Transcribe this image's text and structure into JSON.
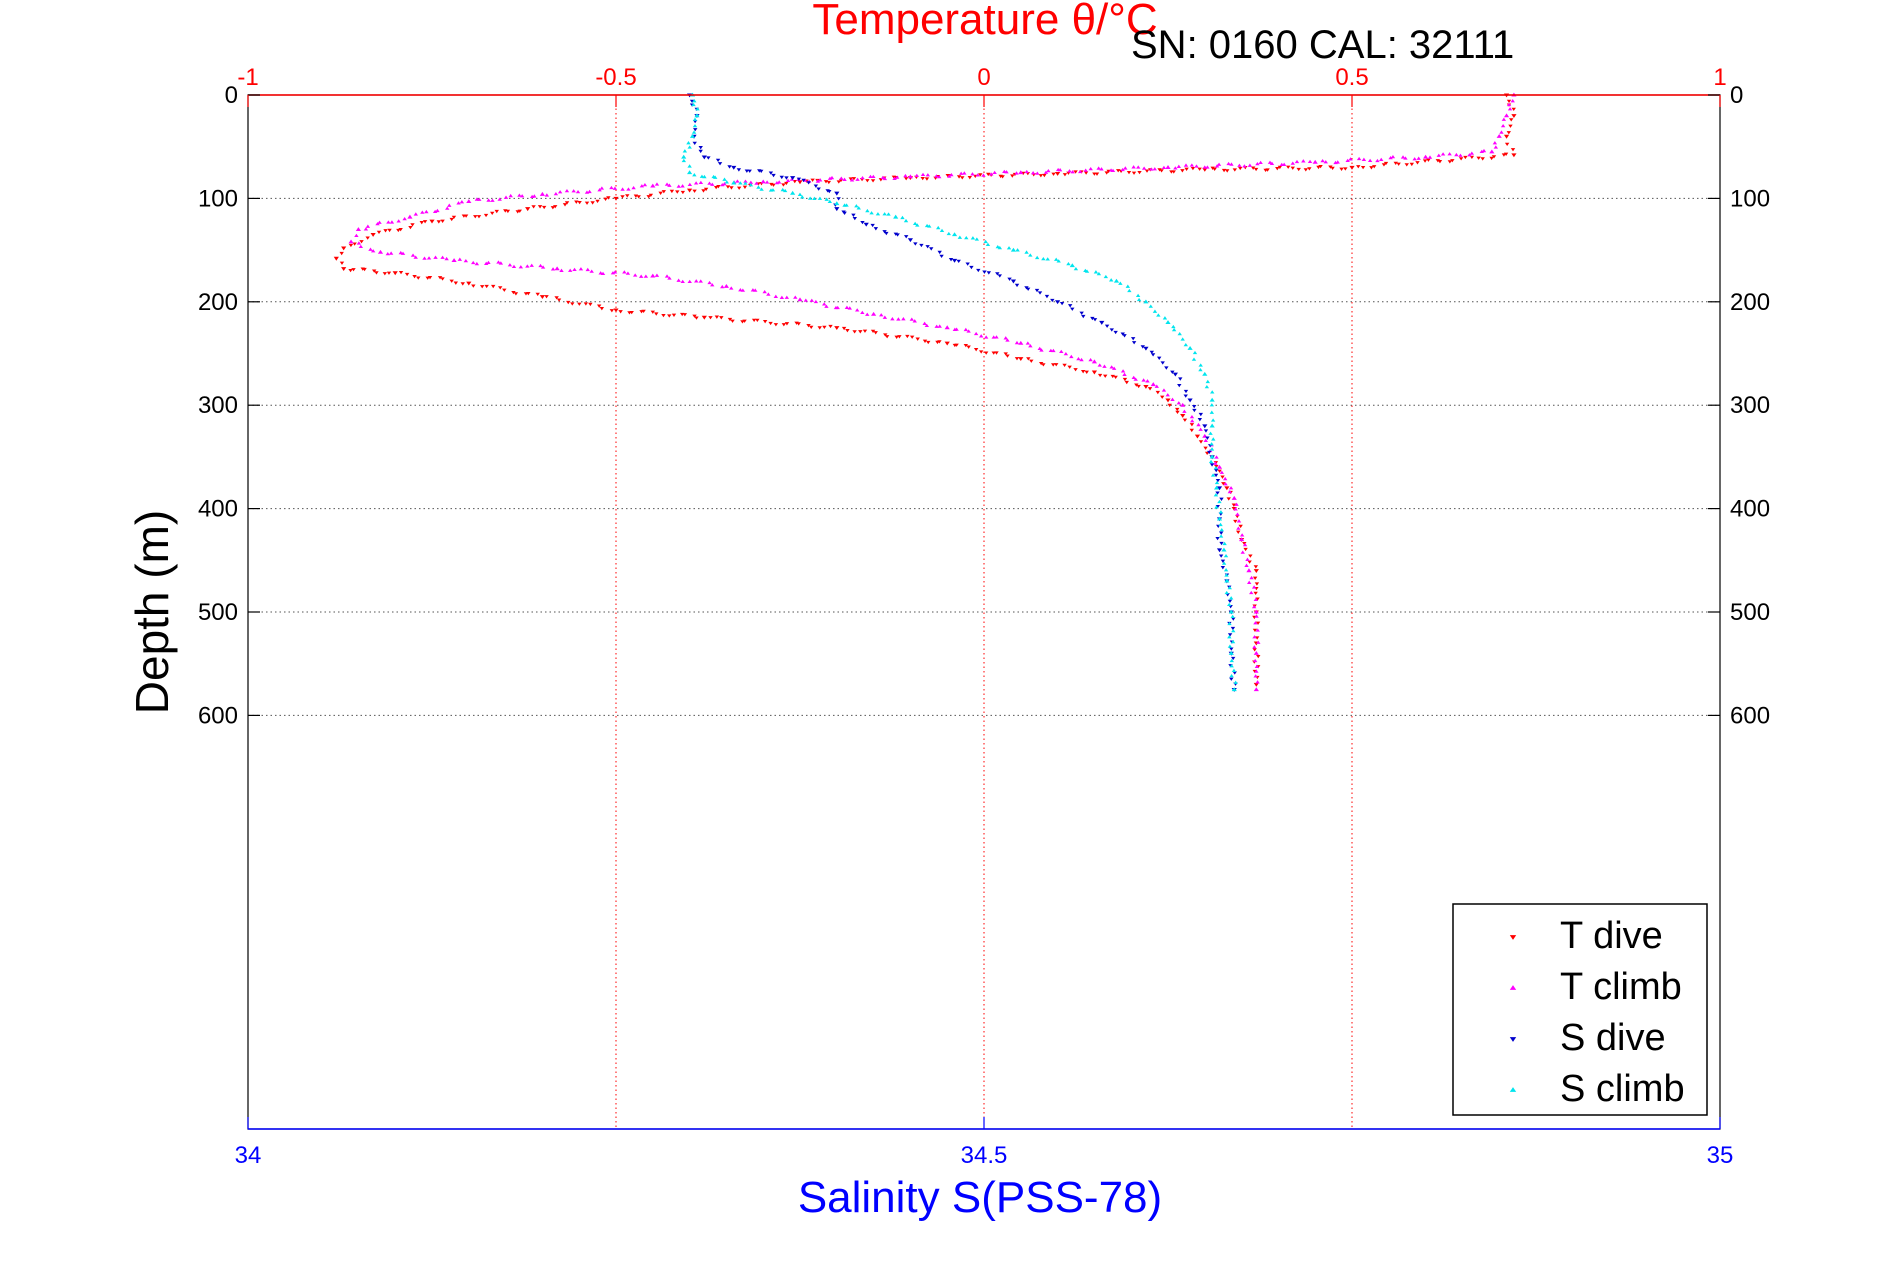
{
  "figure": {
    "top_title": "Temperature θ/°C",
    "annotation": "SN: 0160  CAL: 32111"
  },
  "chart_data": {
    "type": "scatter",
    "title": "Temperature θ/°C",
    "annotation": "SN: 0160  CAL: 32111",
    "ylabel": "Depth (m)",
    "xlabel_bottom": "Salinity S(PSS-78)",
    "xlabel_top": "Temperature θ/°C",
    "y_axis": {
      "range": [
        0,
        1000
      ],
      "reversed": true,
      "ticks": [
        0,
        100,
        200,
        300,
        400,
        500,
        600
      ],
      "tick_labels": [
        "0",
        "100",
        "200",
        "300",
        "400",
        "500",
        "600"
      ]
    },
    "x_bottom": {
      "range": [
        34,
        35
      ],
      "ticks": [
        34,
        34.5,
        35
      ],
      "tick_labels": [
        "34",
        "34.5",
        "35"
      ]
    },
    "x_top": {
      "range": [
        -1,
        1
      ],
      "ticks": [
        -1,
        -0.5,
        0,
        0.5,
        1
      ],
      "tick_labels": [
        "-1",
        "-0.5",
        "0",
        "0.5",
        "1"
      ]
    },
    "grid": true,
    "legend": {
      "position": "bottom-right",
      "entries": [
        "T dive",
        "T climb",
        "S dive",
        "S climb"
      ]
    },
    "colors": {
      "top_axis": "#ff0000",
      "bottom_axis": "#0000ff",
      "t_dive": "#ff0000",
      "t_climb": "#ff00ff",
      "s_dive": "#0000cc",
      "s_climb": "#00e5ee"
    },
    "series": [
      {
        "name": "T dive",
        "axis": "top",
        "marker": "triangle-down",
        "points": [
          [
            0.71,
            0
          ],
          [
            0.72,
            20
          ],
          [
            0.71,
            40
          ],
          [
            0.72,
            58
          ],
          [
            0.5,
            70
          ],
          [
            0.3,
            72
          ],
          [
            0.1,
            76
          ],
          [
            -0.1,
            80
          ],
          [
            -0.25,
            84
          ],
          [
            -0.4,
            92
          ],
          [
            -0.5,
            100
          ],
          [
            -0.62,
            110
          ],
          [
            -0.75,
            122
          ],
          [
            -0.83,
            135
          ],
          [
            -0.87,
            148
          ],
          [
            -0.88,
            158
          ],
          [
            -0.87,
            168
          ],
          [
            -0.8,
            172
          ],
          [
            -0.7,
            182
          ],
          [
            -0.6,
            195
          ],
          [
            -0.5,
            208
          ],
          [
            -0.38,
            215
          ],
          [
            -0.2,
            225
          ],
          [
            -0.05,
            240
          ],
          [
            0.05,
            255
          ],
          [
            0.15,
            268
          ],
          [
            0.22,
            282
          ],
          [
            0.25,
            295
          ],
          [
            0.27,
            310
          ],
          [
            0.29,
            330
          ],
          [
            0.31,
            350
          ],
          [
            0.33,
            380
          ],
          [
            0.34,
            400
          ],
          [
            0.35,
            430
          ],
          [
            0.37,
            460
          ],
          [
            0.37,
            500
          ],
          [
            0.37,
            530
          ],
          [
            0.37,
            570
          ]
        ]
      },
      {
        "name": "T climb",
        "axis": "top",
        "marker": "triangle-up",
        "points": [
          [
            0.72,
            0
          ],
          [
            0.71,
            20
          ],
          [
            0.7,
            40
          ],
          [
            0.69,
            55
          ],
          [
            0.6,
            60
          ],
          [
            0.45,
            65
          ],
          [
            0.25,
            70
          ],
          [
            0.05,
            75
          ],
          [
            -0.1,
            79
          ],
          [
            -0.3,
            84
          ],
          [
            -0.45,
            88
          ],
          [
            -0.6,
            96
          ],
          [
            -0.7,
            103
          ],
          [
            -0.78,
            118
          ],
          [
            -0.85,
            130
          ],
          [
            -0.86,
            142
          ],
          [
            -0.82,
            152
          ],
          [
            -0.72,
            160
          ],
          [
            -0.58,
            168
          ],
          [
            -0.45,
            175
          ],
          [
            -0.35,
            185
          ],
          [
            -0.25,
            198
          ],
          [
            -0.15,
            212
          ],
          [
            -0.05,
            225
          ],
          [
            0.05,
            240
          ],
          [
            0.15,
            258
          ],
          [
            0.23,
            280
          ],
          [
            0.27,
            300
          ],
          [
            0.3,
            330
          ],
          [
            0.32,
            360
          ],
          [
            0.34,
            390
          ],
          [
            0.35,
            430
          ],
          [
            0.36,
            460
          ],
          [
            0.37,
            500
          ],
          [
            0.37,
            540
          ],
          [
            0.37,
            575
          ]
        ]
      },
      {
        "name": "S dive",
        "axis": "bottom",
        "marker": "triangle-down",
        "points": [
          [
            34.3,
            0
          ],
          [
            34.305,
            20
          ],
          [
            34.303,
            40
          ],
          [
            34.31,
            60
          ],
          [
            34.33,
            70
          ],
          [
            34.37,
            80
          ],
          [
            34.4,
            95
          ],
          [
            34.4,
            110
          ],
          [
            34.42,
            125
          ],
          [
            34.45,
            140
          ],
          [
            34.48,
            160
          ],
          [
            34.52,
            180
          ],
          [
            34.55,
            200
          ],
          [
            34.58,
            220
          ],
          [
            34.61,
            245
          ],
          [
            34.63,
            270
          ],
          [
            34.64,
            295
          ],
          [
            34.65,
            320
          ],
          [
            34.655,
            350
          ],
          [
            34.66,
            380
          ],
          [
            34.66,
            410
          ],
          [
            34.66,
            440
          ],
          [
            34.665,
            470
          ],
          [
            34.668,
            500
          ],
          [
            34.668,
            540
          ],
          [
            34.67,
            575
          ]
        ]
      },
      {
        "name": "S climb",
        "axis": "bottom",
        "marker": "triangle-up",
        "points": [
          [
            34.302,
            0
          ],
          [
            34.305,
            20
          ],
          [
            34.302,
            40
          ],
          [
            34.296,
            60
          ],
          [
            34.3,
            75
          ],
          [
            34.33,
            85
          ],
          [
            34.37,
            95
          ],
          [
            34.4,
            105
          ],
          [
            34.44,
            118
          ],
          [
            34.48,
            135
          ],
          [
            34.52,
            150
          ],
          [
            34.56,
            165
          ],
          [
            34.59,
            180
          ],
          [
            34.61,
            200
          ],
          [
            34.625,
            220
          ],
          [
            34.64,
            245
          ],
          [
            34.65,
            270
          ],
          [
            34.655,
            295
          ],
          [
            34.655,
            320
          ],
          [
            34.655,
            350
          ],
          [
            34.658,
            380
          ],
          [
            34.66,
            410
          ],
          [
            34.663,
            440
          ],
          [
            34.665,
            470
          ],
          [
            34.668,
            500
          ],
          [
            34.668,
            540
          ],
          [
            34.67,
            575
          ]
        ]
      }
    ]
  }
}
